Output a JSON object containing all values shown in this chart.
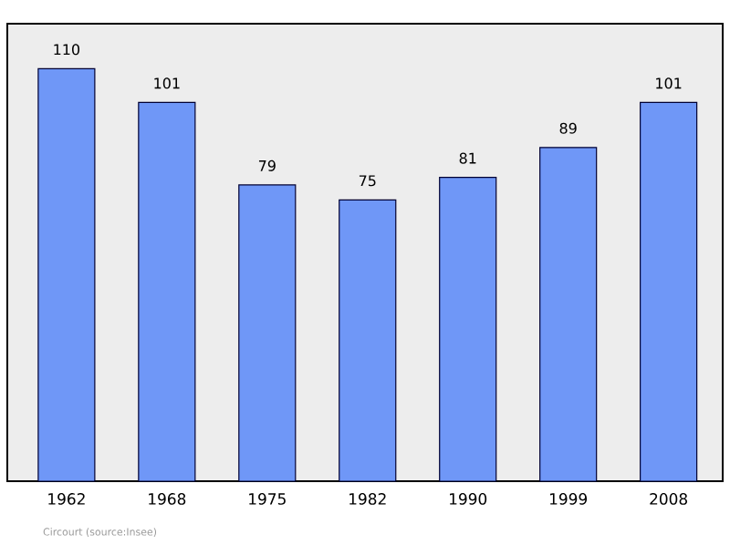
{
  "chart_data": {
    "type": "bar",
    "categories": [
      "1962",
      "1968",
      "1975",
      "1982",
      "1990",
      "1999",
      "2008"
    ],
    "values": [
      110,
      101,
      79,
      75,
      81,
      89,
      101
    ],
    "color": "#6f97f7",
    "ylim": [
      0,
      122
    ],
    "data_labels": true,
    "annotations": [
      "Circourt    (source:Insee)"
    ]
  }
}
